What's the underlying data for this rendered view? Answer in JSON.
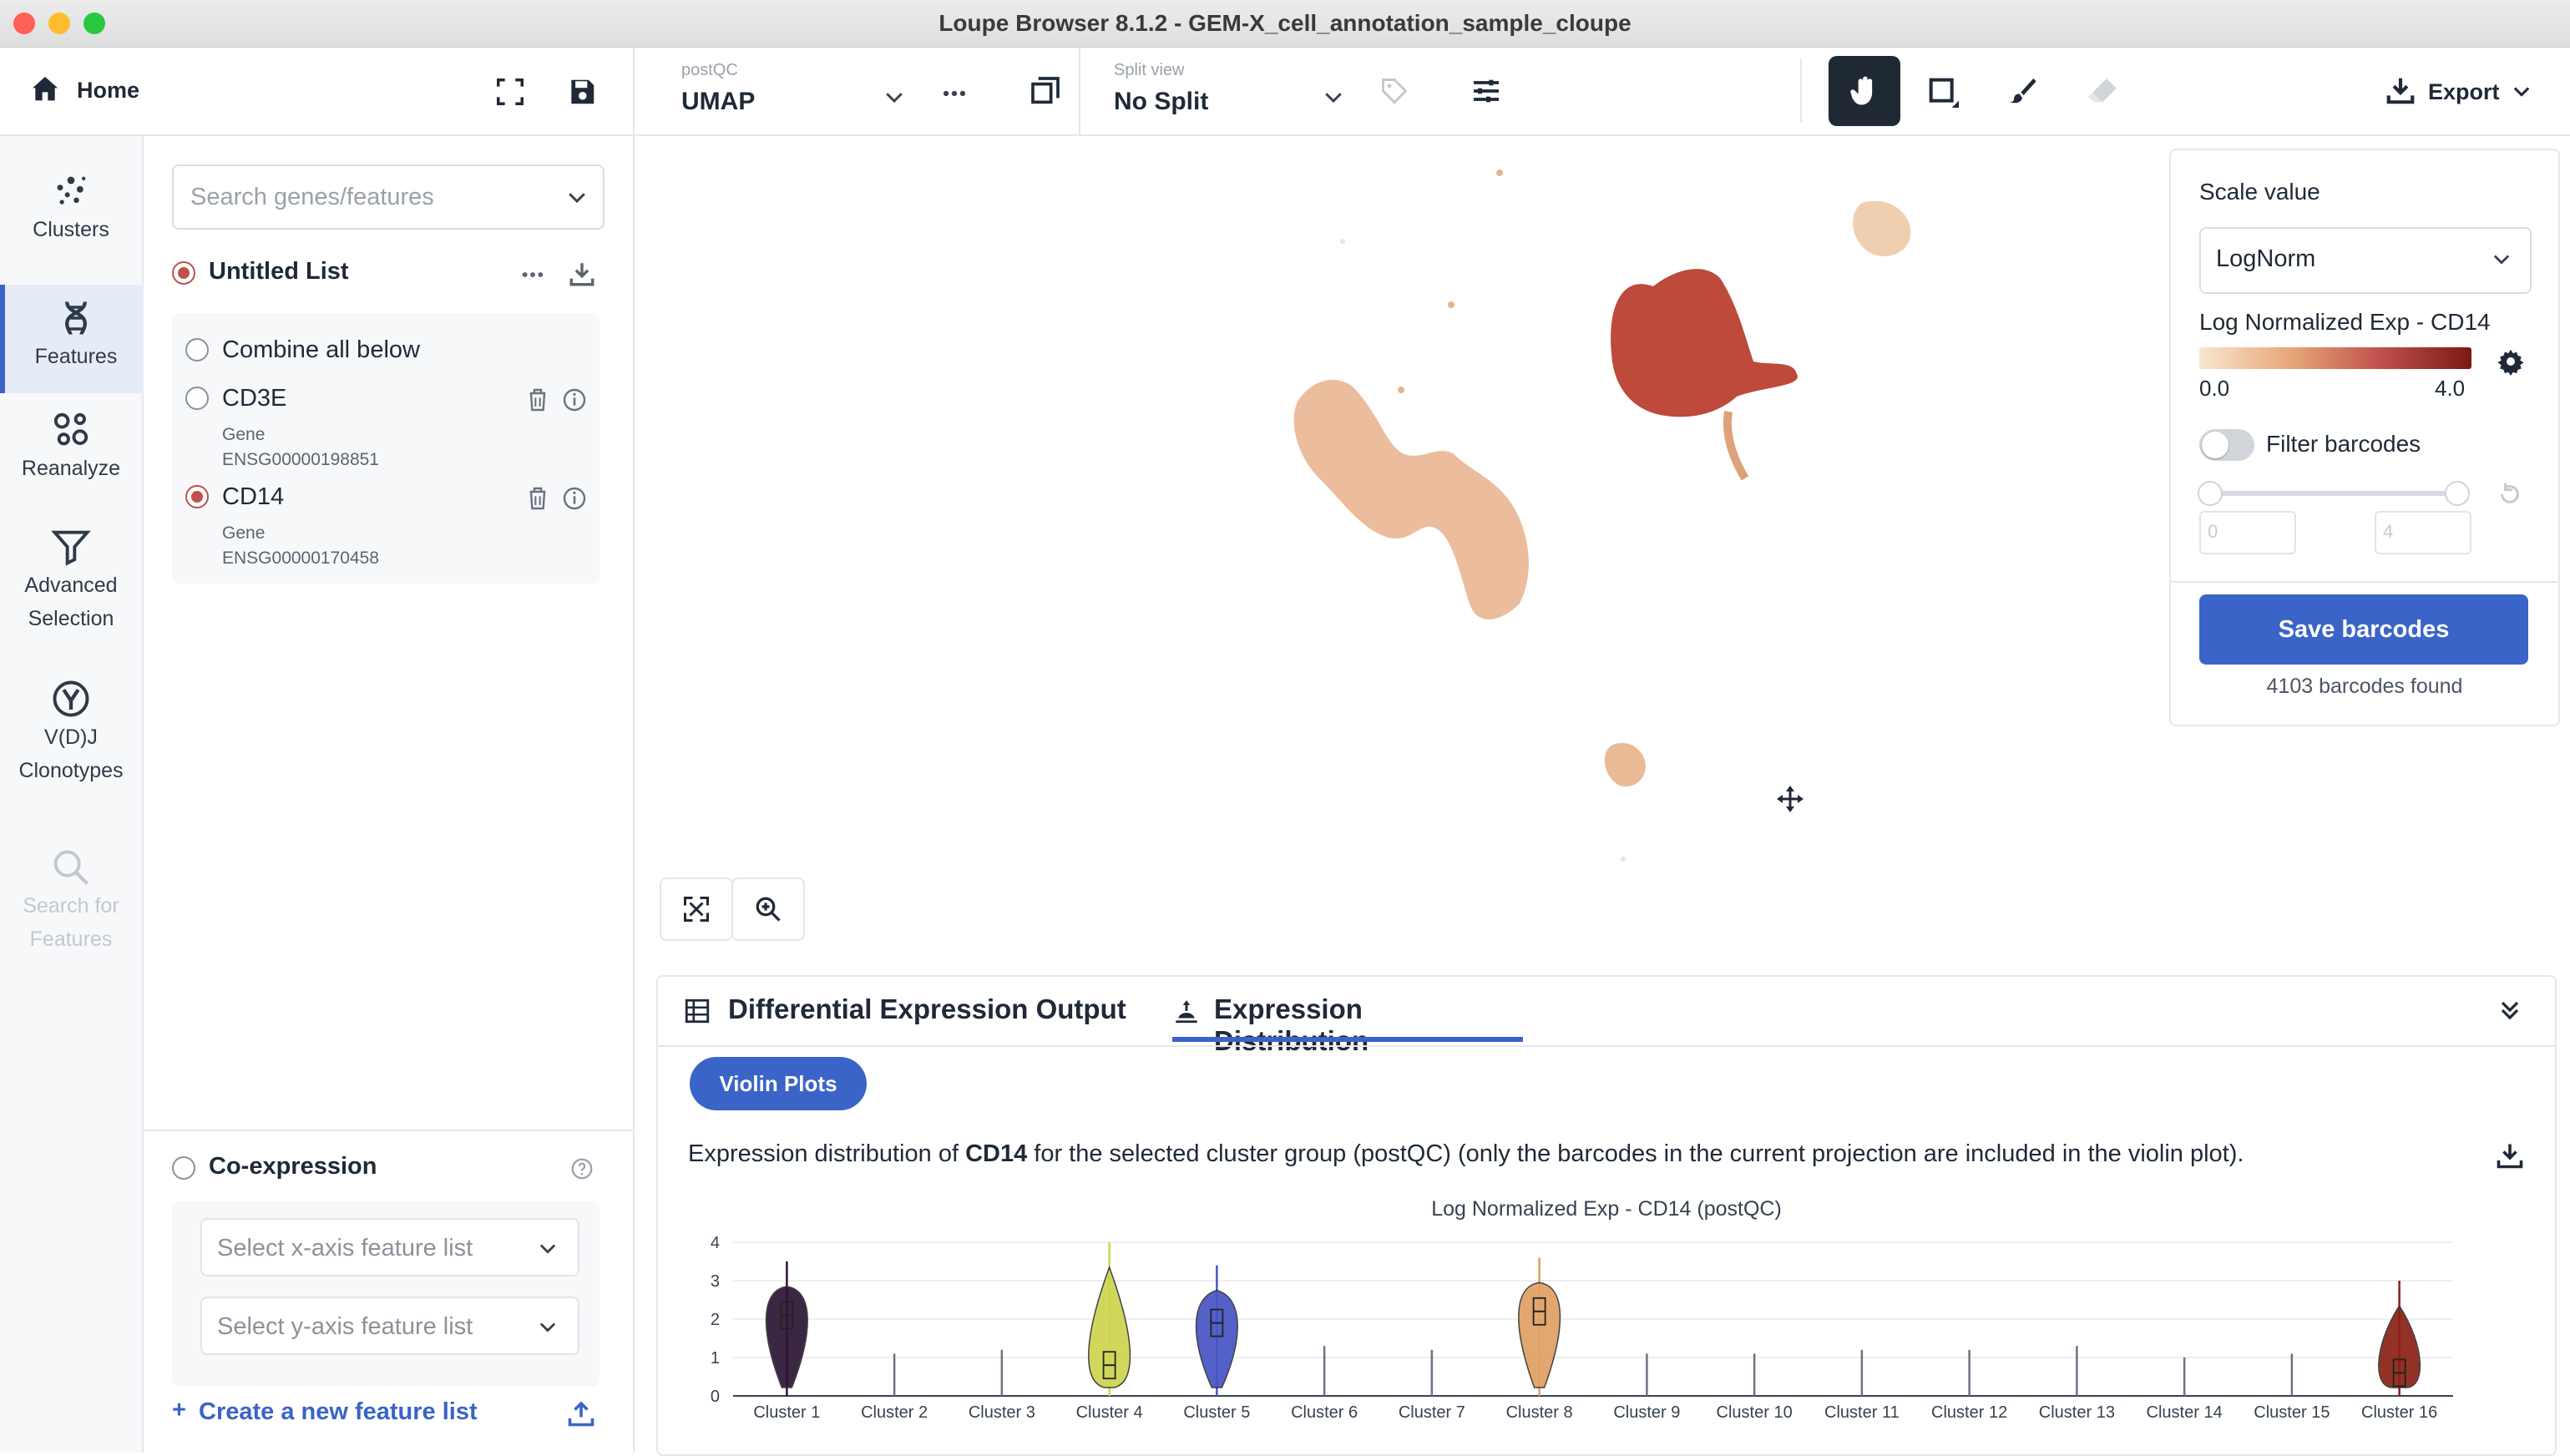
{
  "window": {
    "title": "Loupe Browser 8.1.2 - GEM-X_cell_annotation_sample_cloupe",
    "traffic_lights": [
      "#fe5f57",
      "#febc2e",
      "#28c840"
    ]
  },
  "toolbar": {
    "home_label": "Home",
    "projection": {
      "small_label": "postQC",
      "value": "UMAP"
    },
    "split_view": {
      "small_label": "Split view",
      "value": "No Split"
    },
    "export_label": "Export",
    "tools": [
      "hand-icon",
      "crop-icon",
      "brush-icon",
      "eraser-icon"
    ]
  },
  "rail": {
    "items": [
      {
        "label": "Clusters",
        "icon": "clusters-icon"
      },
      {
        "label": "Features",
        "icon": "dna-icon"
      },
      {
        "label": "Reanalyze",
        "icon": "reanalyze-icon"
      },
      {
        "label1": "Advanced",
        "label2": "Selection",
        "icon": "filter-icon"
      },
      {
        "label1": "V(D)J",
        "label2": "Clonotypes",
        "icon": "vdj-icon"
      },
      {
        "label1": "Search for",
        "label2": "Features",
        "icon": "search-icon"
      }
    ]
  },
  "features": {
    "search_placeholder": "Search genes/features",
    "list_title": "Untitled List",
    "combine_label": "Combine all below",
    "items": [
      {
        "name": "CD3E",
        "type": "Gene",
        "id": "ENSG00000198851",
        "selected": false
      },
      {
        "name": "CD14",
        "type": "Gene",
        "id": "ENSG00000170458",
        "selected": true
      }
    ],
    "coexpression": {
      "label": "Co-expression",
      "x_placeholder": "Select x-axis feature list",
      "y_placeholder": "Select y-axis feature list"
    },
    "create_label": "Create a new feature list"
  },
  "right_panel": {
    "scale_label": "Scale value",
    "scale_value": "LogNorm",
    "legend_title": "Log Normalized Exp - CD14",
    "legend_min": "0.0",
    "legend_max": "4.0",
    "filter_label": "Filter barcodes",
    "filter_on": false,
    "range_min": "0",
    "range_max": "4",
    "save_label": "Save barcodes",
    "found_text": "4103 barcodes found"
  },
  "bottom": {
    "tab1": "Differential Expression Output",
    "tab2": "Expression Distribution",
    "pill": "Violin Plots",
    "desc_prefix": "Expression distribution of ",
    "desc_gene": "CD14",
    "desc_suffix": " for the selected cluster group (postQC) (only the barcodes in the current projection are included in the violin plot).",
    "chart_title": "Log Normalized Exp - CD14 (postQC)"
  },
  "chart_data": {
    "type": "violin",
    "title": "Log Normalized Exp - CD14 (postQC)",
    "categories": [
      "Cluster 1",
      "Cluster 2",
      "Cluster 3",
      "Cluster 4",
      "Cluster 5",
      "Cluster 6",
      "Cluster 7",
      "Cluster 8",
      "Cluster 9",
      "Cluster 10",
      "Cluster 11",
      "Cluster 12",
      "Cluster 13",
      "Cluster 14",
      "Cluster 15",
      "Cluster 16"
    ],
    "ylim": [
      0,
      4
    ],
    "yticks": [
      0,
      1,
      2,
      3,
      4
    ],
    "max_values": [
      3.5,
      1.1,
      1.2,
      4.0,
      3.4,
      1.3,
      1.2,
      3.6,
      1.1,
      1.1,
      1.2,
      1.2,
      1.3,
      1.0,
      1.1,
      3.0
    ],
    "medians": [
      2.1,
      0,
      0,
      0.8,
      1.9,
      0,
      0,
      2.2,
      0,
      0,
      0,
      0,
      0,
      0,
      0,
      0.6
    ],
    "colors": [
      "#2b1435",
      "#555",
      "#555",
      "#cdd44e",
      "#4654c4",
      "#555",
      "#555",
      "#e0a062",
      "#555",
      "#555",
      "#555",
      "#555",
      "#555",
      "#555",
      "#555",
      "#8a2014"
    ]
  }
}
